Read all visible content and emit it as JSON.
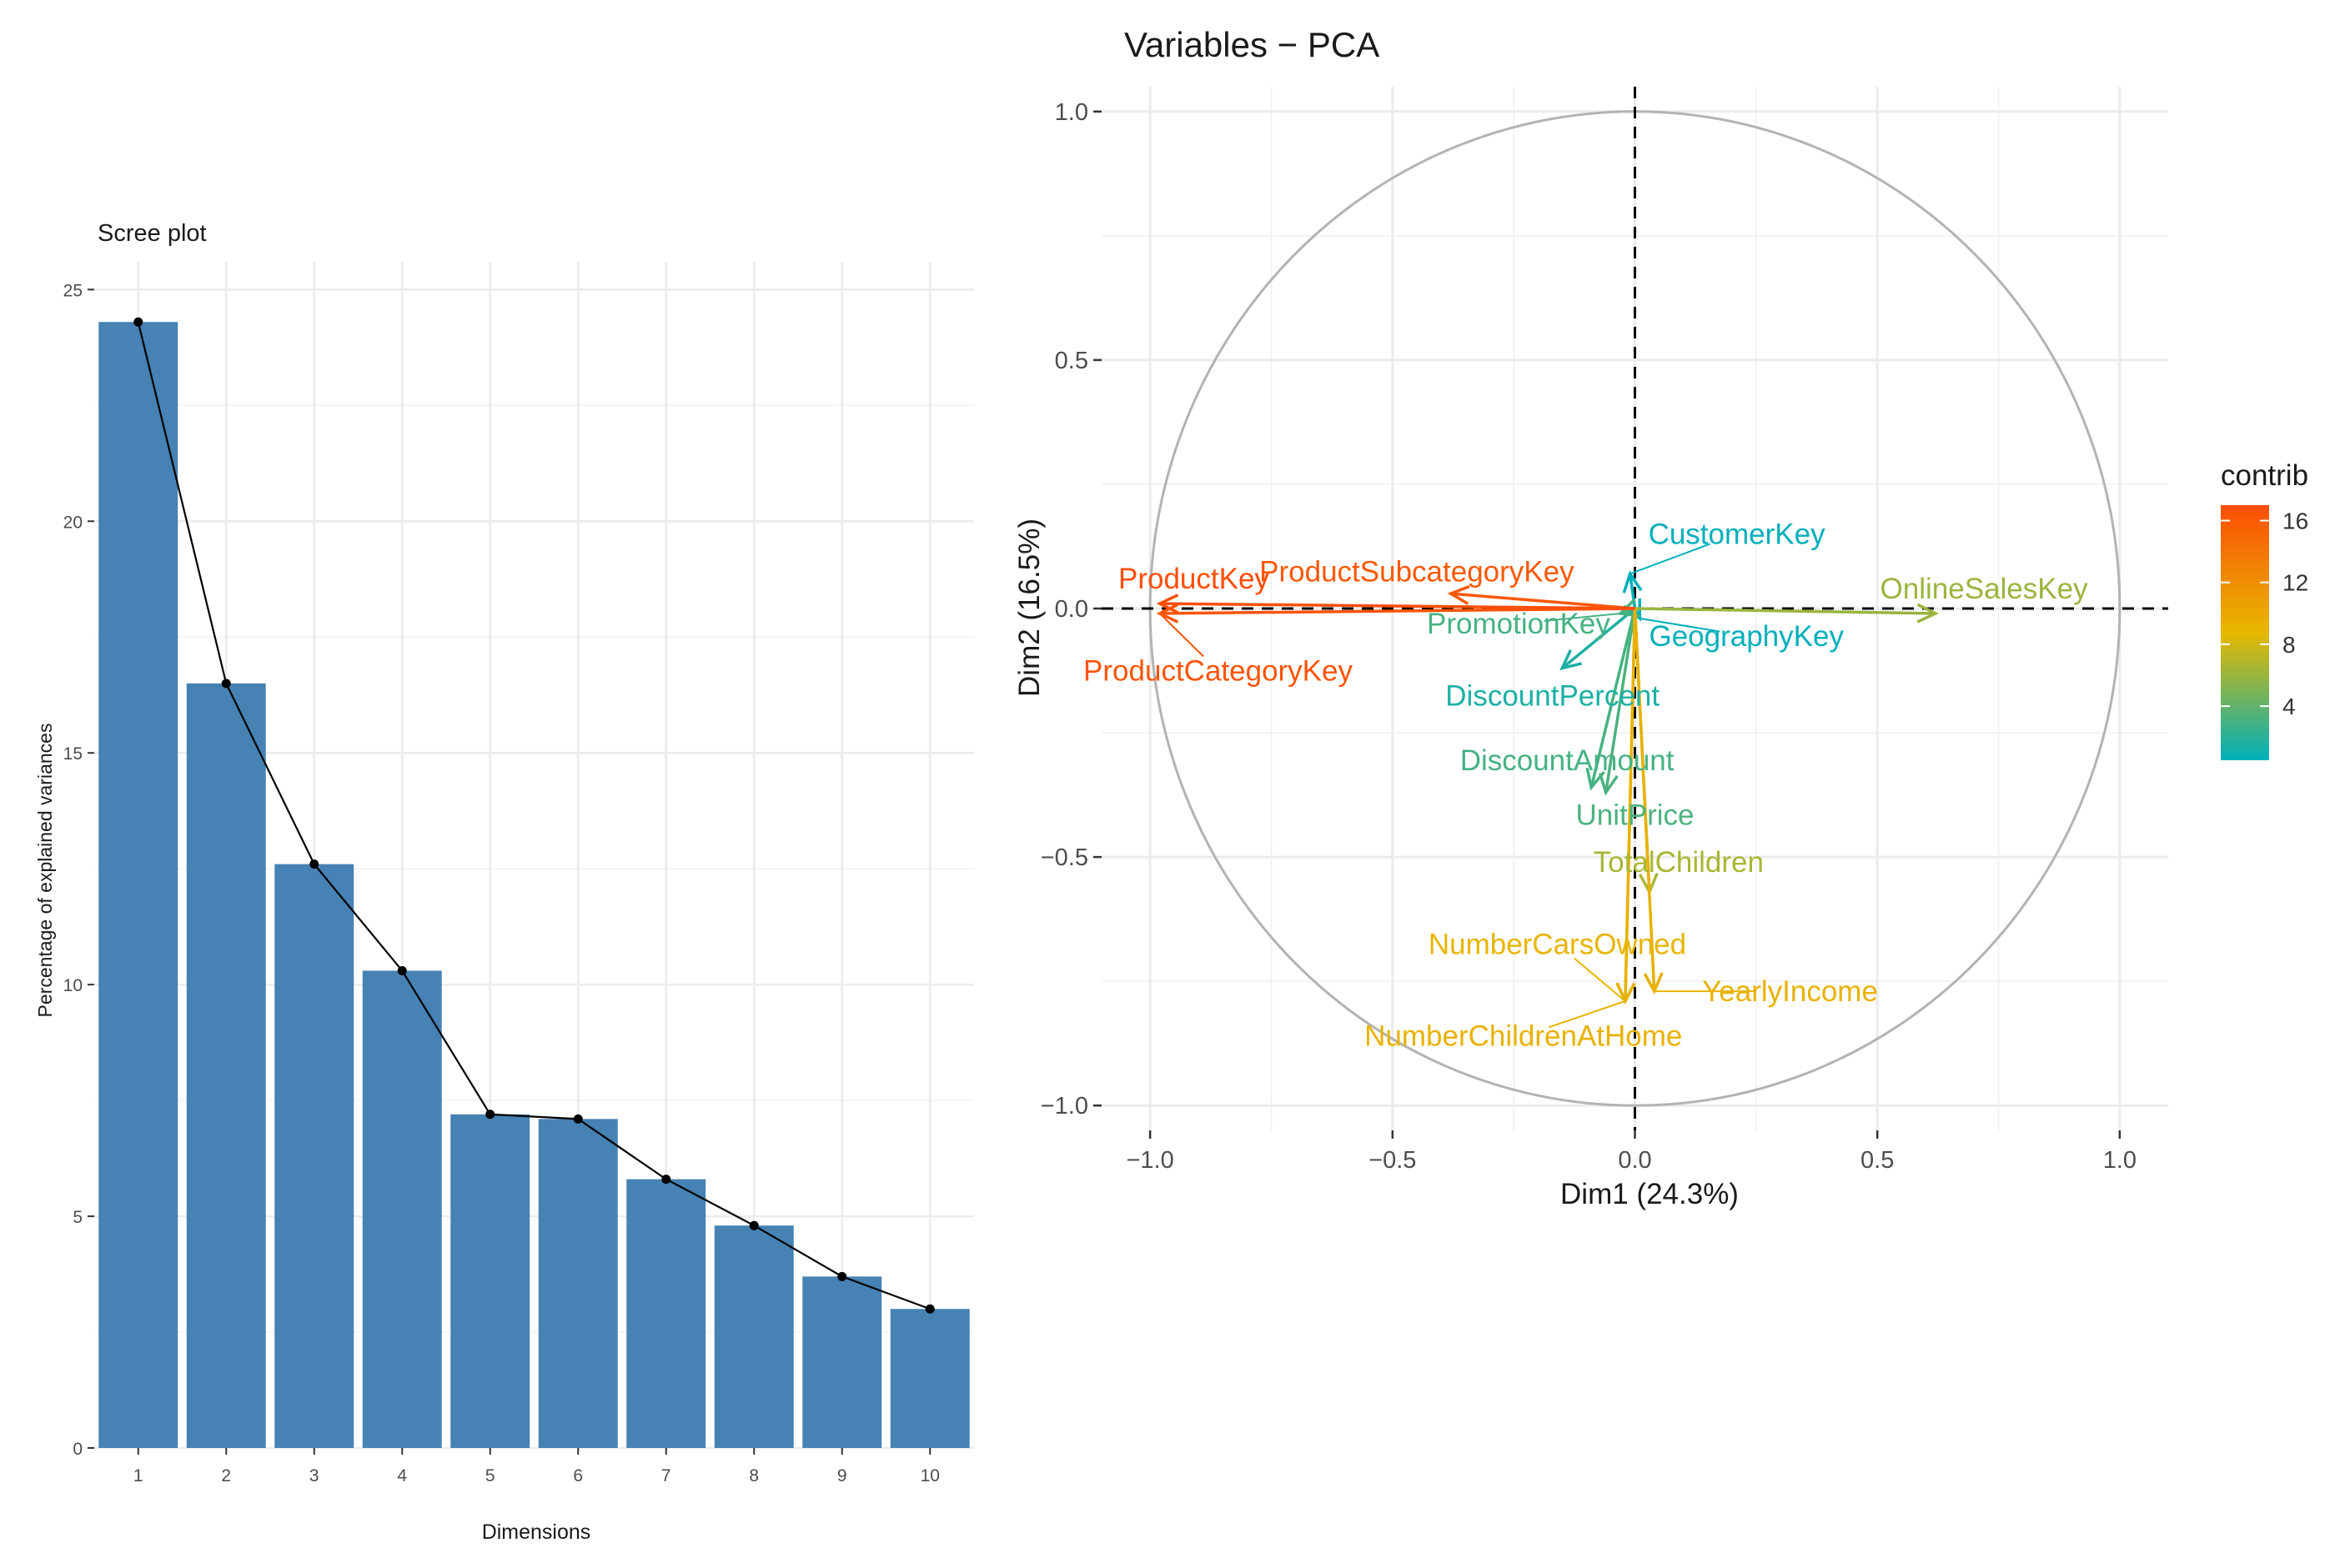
{
  "chart_data": [
    {
      "type": "bar",
      "title": "Scree plot",
      "xlabel": "Dimensions",
      "ylabel": "Percentage of explained variances",
      "categories": [
        "1",
        "2",
        "3",
        "4",
        "5",
        "6",
        "7",
        "8",
        "9",
        "10"
      ],
      "values": [
        24.3,
        16.5,
        12.6,
        10.3,
        7.2,
        7.1,
        5.8,
        4.8,
        3.7,
        3.0
      ],
      "line_overlay": true,
      "ylim": [
        0,
        25.6
      ],
      "yticks": [
        0,
        5,
        10,
        15,
        20,
        25
      ],
      "ytick_labels": [
        "0",
        "5",
        "10",
        "15",
        "20",
        "25"
      ],
      "bar_color": "#4682B4",
      "grid": true
    },
    {
      "type": "scatter",
      "subtype": "pca-correlation-circle",
      "title": "Variables − PCA",
      "xlabel": "Dim1 (24.3%)",
      "ylabel": "Dim2 (16.5%)",
      "xlim": [
        -1.1,
        1.1
      ],
      "ylim": [
        -1.05,
        1.05
      ],
      "xticks": [
        -1.0,
        -0.5,
        0.0,
        0.5,
        1.0
      ],
      "xtick_labels": [
        "−1.0",
        "−0.5",
        "0.0",
        "0.5",
        "1.0"
      ],
      "yticks": [
        -1.0,
        -0.5,
        0.0,
        0.5,
        1.0
      ],
      "ytick_labels": [
        "−1.0",
        "−0.5",
        "0.0",
        "0.5",
        "1.0"
      ],
      "legend": {
        "title": "contrib",
        "position": "right",
        "range": [
          0.5,
          17
        ],
        "ticks": [
          4,
          8,
          12,
          16
        ],
        "tick_labels": [
          "4",
          "8",
          "12",
          "16"
        ],
        "gradient": [
          "#00AFBB",
          "#E7B800",
          "#FC4E07"
        ]
      },
      "variables": [
        {
          "name": "ProductKey",
          "x": -0.98,
          "y": 0.01,
          "contrib": 17.0,
          "lx": -0.91,
          "ly": 0.06
        },
        {
          "name": "ProductSubcategoryKey",
          "x": -0.38,
          "y": 0.03,
          "contrib": 16.2,
          "lx": -0.45,
          "ly": 0.075
        },
        {
          "name": "ProductCategoryKey",
          "x": -0.98,
          "y": -0.01,
          "contrib": 16.5,
          "lx": -0.86,
          "ly": -0.125
        },
        {
          "name": "CustomerKey",
          "x": -0.01,
          "y": 0.07,
          "contrib": 0.5,
          "lx": 0.21,
          "ly": 0.15
        },
        {
          "name": "OnlineSalesKey",
          "x": 0.62,
          "y": -0.01,
          "contrib": 6.0,
          "lx": 0.72,
          "ly": 0.04
        },
        {
          "name": "PromotionKey",
          "x": -0.03,
          "y": -0.01,
          "contrib": 3.0,
          "lx": -0.24,
          "ly": -0.03
        },
        {
          "name": "GeographyKey",
          "x": 0.01,
          "y": -0.02,
          "contrib": 0.5,
          "lx": 0.23,
          "ly": -0.055
        },
        {
          "name": "DiscountPercent",
          "x": -0.15,
          "y": -0.12,
          "contrib": 1.5,
          "lx": -0.17,
          "ly": -0.175
        },
        {
          "name": "DiscountAmount",
          "x": -0.09,
          "y": -0.36,
          "contrib": 3.0,
          "lx": -0.14,
          "ly": -0.305
        },
        {
          "name": "UnitPrice",
          "x": -0.06,
          "y": -0.37,
          "contrib": 3.2,
          "lx": 0.0,
          "ly": -0.415
        },
        {
          "name": "TotalChildren",
          "x": 0.03,
          "y": -0.57,
          "contrib": 6.5,
          "lx": 0.09,
          "ly": -0.51
        },
        {
          "name": "NumberCarsOwned",
          "x": -0.02,
          "y": -0.79,
          "contrib": 9.0,
          "lx": -0.16,
          "ly": -0.675
        },
        {
          "name": "YearlyIncome",
          "x": 0.04,
          "y": -0.77,
          "contrib": 9.3,
          "lx": 0.32,
          "ly": -0.77
        },
        {
          "name": "NumberChildrenAtHome",
          "x": -0.02,
          "y": -0.79,
          "contrib": 9.2,
          "lx": -0.23,
          "ly": -0.86
        }
      ]
    }
  ]
}
